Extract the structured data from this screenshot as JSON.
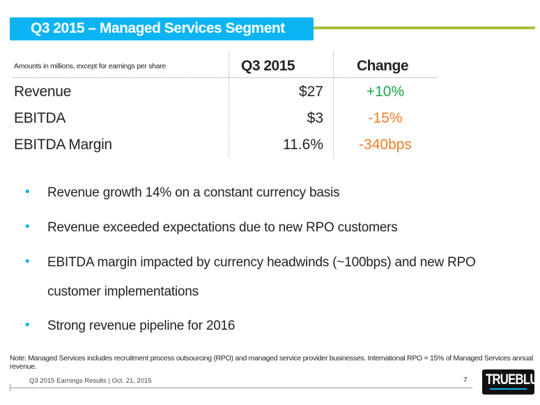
{
  "title": "Q3 2015 – Managed Services Segment",
  "table": {
    "subtitle": "Amounts in millions, except for earnings per share",
    "col_q3": "Q3 2015",
    "col_change": "Change",
    "rows": [
      {
        "label": "Revenue",
        "value": "$27",
        "change": "+10%",
        "change_color": "#1aa54a"
      },
      {
        "label": "EBITDA",
        "value": "$3",
        "change": "-15%",
        "change_color": "#f07c28"
      },
      {
        "label": "EBITDA Margin",
        "value": "11.6%",
        "change": "-340bps",
        "change_color": "#f07c28"
      }
    ]
  },
  "bullets": [
    "Revenue growth 14% on a constant currency basis",
    "Revenue exceeded expectations due to new RPO customers",
    "EBITDA margin impacted by currency headwinds (~100bps) and new RPO customer implementations",
    "Strong revenue pipeline for 2016"
  ],
  "note": "Note: Managed Services includes recruitment process outsourcing (RPO) and managed service provider businesses.  International RPO = 15% of Managed Services annual revenue.",
  "footer": {
    "text": "Q3 2015 Earnings Results | Oct. 21, 2015",
    "page": "7",
    "logo": "TRUEBLUE"
  },
  "colors": {
    "banner": "#0db4f3",
    "accent_line": "#a8c03a"
  }
}
